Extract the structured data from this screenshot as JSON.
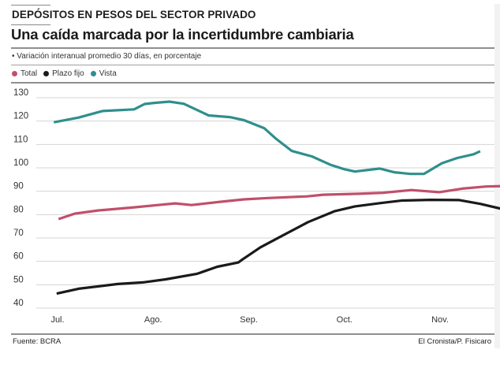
{
  "header": {
    "kicker": "DEPÓSITOS EN PESOS DEL SECTOR PRIVADO",
    "title": "Una caída marcada por la incertidumbre cambiaria",
    "subtitle": "• Variación interanual promedio 30 días, en porcentaje"
  },
  "legend": [
    {
      "label": "Total",
      "color": "#c0506a"
    },
    {
      "label": "Plazo fijo",
      "color": "#1a1a1a"
    },
    {
      "label": "Vista",
      "color": "#2f8f8c"
    }
  ],
  "footer": {
    "source": "Fuente: BCRA",
    "credit": "El Cronista/P. Fisicaro"
  },
  "chart_data": {
    "type": "line",
    "title": "Una caída marcada por la incertidumbre cambiaria",
    "subtitle": "Variación interanual promedio 30 días, en porcentaje",
    "xlabel": "",
    "ylabel": "",
    "x_categories": [
      "Jul.",
      "Ago.",
      "Sep.",
      "Oct.",
      "Nov."
    ],
    "x_unit": "months since Jul. tick",
    "ylim": [
      40,
      130
    ],
    "yticks": [
      40,
      50,
      60,
      70,
      80,
      90,
      100,
      110,
      120,
      130
    ],
    "grid": true,
    "legend_position": "top-left",
    "series": [
      {
        "name": "Total",
        "color": "#c0506a",
        "points": [
          [
            0.01,
            78.1
          ],
          [
            0.18,
            80.4
          ],
          [
            0.43,
            81.8
          ],
          [
            0.8,
            83.1
          ],
          [
            1.05,
            84.1
          ],
          [
            1.23,
            84.8
          ],
          [
            1.4,
            84.1
          ],
          [
            1.71,
            85.5
          ],
          [
            1.95,
            86.5
          ],
          [
            2.2,
            87.1
          ],
          [
            2.61,
            87.8
          ],
          [
            2.78,
            88.5
          ],
          [
            3.15,
            88.9
          ],
          [
            3.4,
            89.3
          ],
          [
            3.7,
            90.5
          ],
          [
            3.99,
            89.6
          ],
          [
            4.23,
            91.1
          ],
          [
            4.48,
            92.0
          ],
          [
            4.68,
            92.2
          ]
        ]
      },
      {
        "name": "Plazo fijo",
        "color": "#1a1a1a",
        "points": [
          [
            -0.01,
            46.2
          ],
          [
            0.22,
            48.3
          ],
          [
            0.63,
            50.3
          ],
          [
            0.89,
            51.0
          ],
          [
            1.13,
            52.3
          ],
          [
            1.46,
            54.7
          ],
          [
            1.67,
            57.7
          ],
          [
            1.89,
            59.5
          ],
          [
            1.93,
            60.7
          ],
          [
            2.12,
            66.0
          ],
          [
            2.37,
            71.4
          ],
          [
            2.62,
            76.8
          ],
          [
            2.9,
            81.5
          ],
          [
            3.11,
            83.5
          ],
          [
            3.37,
            84.9
          ],
          [
            3.6,
            86.0
          ],
          [
            3.9,
            86.3
          ],
          [
            4.2,
            86.2
          ],
          [
            4.42,
            84.6
          ],
          [
            4.66,
            82.3
          ]
        ]
      },
      {
        "name": "Vista",
        "color": "#2f8f8c",
        "points": [
          [
            -0.04,
            119.5
          ],
          [
            0.22,
            121.5
          ],
          [
            0.47,
            124.3
          ],
          [
            0.8,
            125.0
          ],
          [
            0.91,
            127.3
          ],
          [
            1.02,
            127.8
          ],
          [
            1.17,
            128.3
          ],
          [
            1.32,
            127.4
          ],
          [
            1.58,
            122.4
          ],
          [
            1.8,
            121.7
          ],
          [
            1.95,
            120.4
          ],
          [
            2.16,
            117.0
          ],
          [
            2.28,
            112.6
          ],
          [
            2.45,
            107.2
          ],
          [
            2.66,
            104.9
          ],
          [
            2.86,
            101.2
          ],
          [
            3.0,
            99.4
          ],
          [
            3.11,
            98.4
          ],
          [
            3.37,
            99.7
          ],
          [
            3.52,
            98.1
          ],
          [
            3.69,
            97.4
          ],
          [
            3.83,
            97.4
          ],
          [
            4.02,
            102.0
          ],
          [
            4.18,
            104.2
          ],
          [
            4.35,
            105.8
          ],
          [
            4.42,
            107.1
          ]
        ]
      }
    ]
  }
}
